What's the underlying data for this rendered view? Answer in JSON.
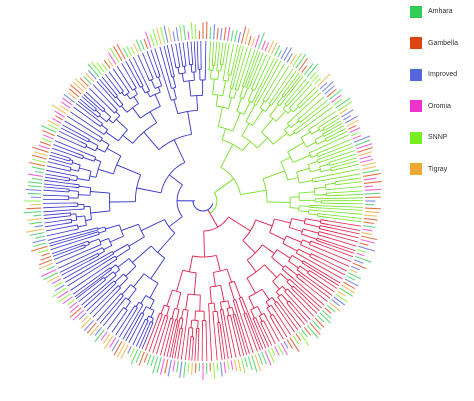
{
  "legend": {
    "items": [
      {
        "label": "Amhara",
        "color": "#33cc55"
      },
      {
        "label": "Gambella",
        "color": "#dd4411"
      },
      {
        "label": "Improved",
        "color": "#5566dd"
      },
      {
        "label": "Oromia",
        "color": "#ee33cc"
      },
      {
        "label": "SNNP",
        "color": "#77ee22"
      },
      {
        "label": "Tigray",
        "color": "#eeaa33"
      }
    ]
  },
  "tree": {
    "clade_colors": {
      "green": "#77e22a",
      "red": "#e0204a",
      "blue": "#3333cc"
    },
    "tip_label_colors": [
      "#77ee22",
      "#5566dd",
      "#ee33cc",
      "#eeaa33",
      "#33cc55",
      "#dd4411"
    ]
  }
}
